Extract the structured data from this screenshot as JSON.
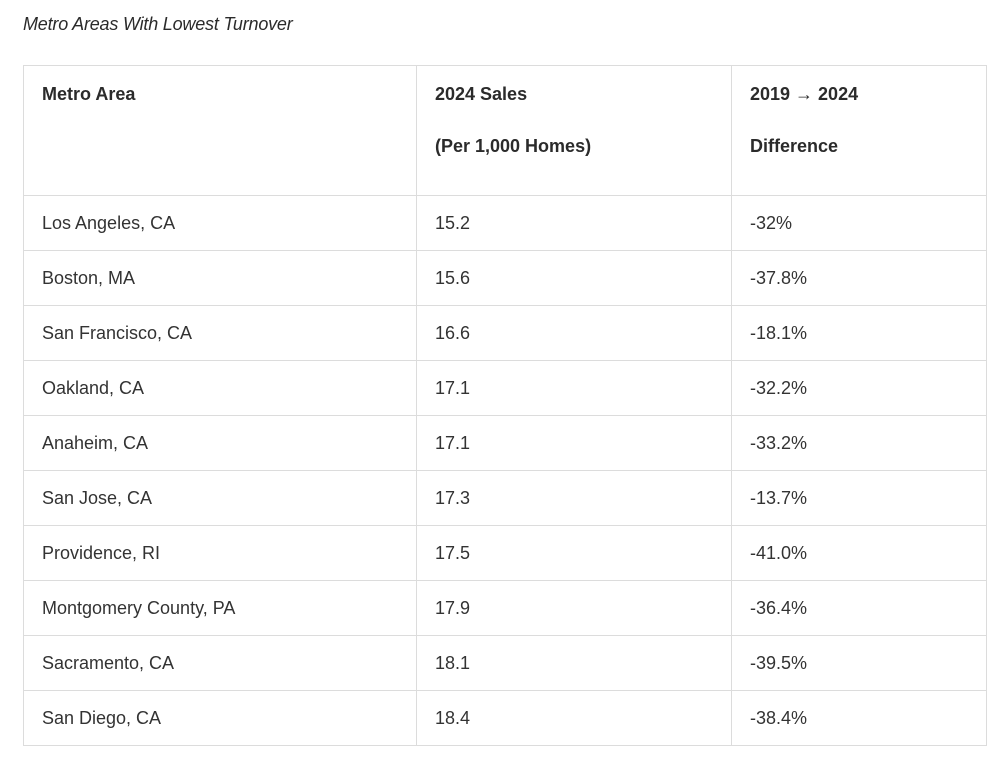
{
  "title": "Metro Areas With Lowest Turnover",
  "columns": [
    {
      "line1": "Metro Area",
      "line2": ""
    },
    {
      "line1": "2024 Sales",
      "line2": "(Per 1,000 Homes)"
    },
    {
      "line1": "2019 → 2024",
      "line2": "Difference"
    }
  ],
  "rows": [
    {
      "metro": "Los Angeles, CA",
      "sales": "15.2",
      "diff": "-32%"
    },
    {
      "metro": "Boston, MA",
      "sales": "15.6",
      "diff": "-37.8%"
    },
    {
      "metro": "San Francisco, CA",
      "sales": "16.6",
      "diff": "-18.1%"
    },
    {
      "metro": "Oakland, CA",
      "sales": "17.1",
      "diff": "-32.2%"
    },
    {
      "metro": "Anaheim, CA",
      "sales": "17.1",
      "diff": "-33.2%"
    },
    {
      "metro": "San Jose, CA",
      "sales": "17.3",
      "diff": "-13.7%"
    },
    {
      "metro": "Providence, RI",
      "sales": "17.5",
      "diff": "-41.0%"
    },
    {
      "metro": "Montgomery County, PA",
      "sales": "17.9",
      "diff": "-36.4%"
    },
    {
      "metro": "Sacramento, CA",
      "sales": "18.1",
      "diff": "-39.5%"
    },
    {
      "metro": "San Diego, CA",
      "sales": "18.4",
      "diff": "-38.4%"
    }
  ]
}
